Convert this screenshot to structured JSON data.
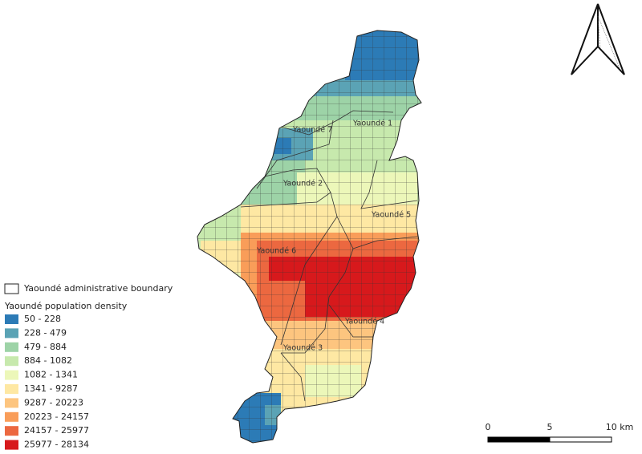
{
  "legend": {
    "boundary_label": "Yaoundé administrative boundary",
    "title": "Yaoundé population density",
    "items": [
      {
        "label": "50 - 228",
        "color": "#2c7bb6"
      },
      {
        "label": "228 - 479",
        "color": "#5ba3b5"
      },
      {
        "label": "479 - 884",
        "color": "#9dd3a7"
      },
      {
        "label": "884 - 1082",
        "color": "#c7e9ad"
      },
      {
        "label": "1082 - 1341",
        "color": "#ecf7b9"
      },
      {
        "label": "1341 - 9287",
        "color": "#fee8a3"
      },
      {
        "label": "9287 - 20223",
        "color": "#fdc57f"
      },
      {
        "label": "20223 - 24157",
        "color": "#f99d59"
      },
      {
        "label": "24157 - 25977",
        "color": "#ec6840"
      },
      {
        "label": "25977 - 28134",
        "color": "#d7191c"
      }
    ]
  },
  "districts": [
    "Yaoundé 1",
    "Yaoundé 7",
    "Yaoundé 2",
    "Yaoundé 5",
    "Yaoundé 6",
    "Yaoundé 4",
    "Yaoundé 3"
  ],
  "scale_bar": {
    "labels": [
      "0",
      "5",
      "10 km"
    ]
  }
}
